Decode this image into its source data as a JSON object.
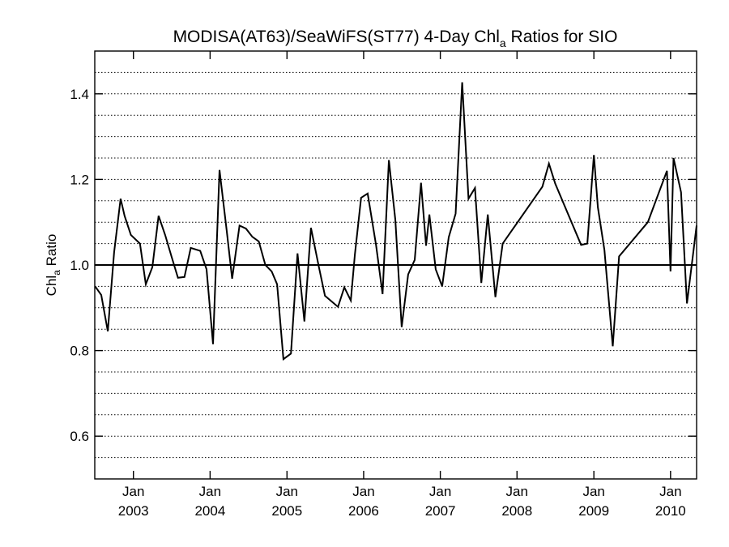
{
  "chart_data": {
    "type": "line",
    "title": {
      "prefix": "MODISA(AT63)/SeaWiFS(ST77) 4-Day Chl",
      "sub": "a",
      "suffix": " Ratios for SIO"
    },
    "ylabel": {
      "prefix": "Chl",
      "sub": "a",
      "suffix": " Ratio"
    },
    "xlim": [
      "2002-07-01",
      "2010-05-05"
    ],
    "ylim": [
      0.5,
      1.5
    ],
    "y_ticks": [
      0.6,
      0.8,
      1.0,
      1.2,
      1.4
    ],
    "y_tick_labels": [
      "0.6",
      "0.8",
      "1.0",
      "1.2",
      "1.4"
    ],
    "x_ticks": [
      {
        "date": "2003-01-01",
        "month": "Jan",
        "year": "2003"
      },
      {
        "date": "2004-01-01",
        "month": "Jan",
        "year": "2004"
      },
      {
        "date": "2005-01-01",
        "month": "Jan",
        "year": "2005"
      },
      {
        "date": "2006-01-01",
        "month": "Jan",
        "year": "2006"
      },
      {
        "date": "2007-01-01",
        "month": "Jan",
        "year": "2007"
      },
      {
        "date": "2008-01-01",
        "month": "Jan",
        "year": "2008"
      },
      {
        "date": "2009-01-01",
        "month": "Jan",
        "year": "2009"
      },
      {
        "date": "2010-01-01",
        "month": "Jan",
        "year": "2010"
      }
    ],
    "grid": {
      "horizontal": true,
      "style": "dotted",
      "y_values": [
        0.55,
        0.6,
        0.65,
        0.7,
        0.75,
        0.8,
        0.85,
        0.9,
        0.95,
        1.05,
        1.1,
        1.15,
        1.2,
        1.25,
        1.3,
        1.35,
        1.4,
        1.45
      ]
    },
    "reference_line": 1.0,
    "series": [
      {
        "color": "#000000",
        "points": [
          [
            "2002-07-03",
            0.95
          ],
          [
            "2002-08-01",
            0.93
          ],
          [
            "2002-09-01",
            0.845
          ],
          [
            "2002-10-01",
            1.03
          ],
          [
            "2002-11-01",
            1.155
          ],
          [
            "2002-11-20",
            1.115
          ],
          [
            "2002-12-20",
            1.07
          ],
          [
            "2003-02-01",
            1.05
          ],
          [
            "2003-03-01",
            0.955
          ],
          [
            "2003-04-01",
            0.995
          ],
          [
            "2003-05-01",
            1.115
          ],
          [
            "2003-06-01",
            1.07
          ],
          [
            "2003-07-01",
            1.02
          ],
          [
            "2003-08-01",
            0.97
          ],
          [
            "2003-09-01",
            0.972
          ],
          [
            "2003-10-01",
            1.04
          ],
          [
            "2003-11-15",
            1.033
          ],
          [
            "2003-12-15",
            0.99
          ],
          [
            "2004-01-15",
            0.815
          ],
          [
            "2004-02-15",
            1.222
          ],
          [
            "2004-03-20",
            1.08
          ],
          [
            "2004-04-15",
            0.968
          ],
          [
            "2004-05-20",
            1.092
          ],
          [
            "2004-06-20",
            1.085
          ],
          [
            "2004-07-20",
            1.066
          ],
          [
            "2004-08-20",
            1.055
          ],
          [
            "2004-09-20",
            1.0
          ],
          [
            "2004-10-20",
            0.985
          ],
          [
            "2004-11-15",
            0.955
          ],
          [
            "2004-12-15",
            0.78
          ],
          [
            "2005-01-20",
            0.793
          ],
          [
            "2005-02-20",
            1.027
          ],
          [
            "2005-03-25",
            0.868
          ],
          [
            "2005-04-25",
            1.087
          ],
          [
            "2005-06-01",
            0.997
          ],
          [
            "2005-07-01",
            0.928
          ],
          [
            "2005-08-01",
            0.915
          ],
          [
            "2005-09-01",
            0.902
          ],
          [
            "2005-10-01",
            0.948
          ],
          [
            "2005-11-01",
            0.917
          ],
          [
            "2005-11-20",
            1.024
          ],
          [
            "2005-12-20",
            1.157
          ],
          [
            "2006-01-20",
            1.167
          ],
          [
            "2006-03-01",
            1.046
          ],
          [
            "2006-04-01",
            0.932
          ],
          [
            "2006-05-01",
            1.245
          ],
          [
            "2006-06-01",
            1.105
          ],
          [
            "2006-07-01",
            0.855
          ],
          [
            "2006-08-01",
            0.978
          ],
          [
            "2006-09-01",
            1.012
          ],
          [
            "2006-10-01",
            1.192
          ],
          [
            "2006-10-25",
            1.045
          ],
          [
            "2006-11-10",
            1.118
          ],
          [
            "2006-12-10",
            0.99
          ],
          [
            "2007-01-10",
            0.95
          ],
          [
            "2007-02-10",
            1.065
          ],
          [
            "2007-03-15",
            1.12
          ],
          [
            "2007-04-15",
            1.427
          ],
          [
            "2007-05-15",
            1.155
          ],
          [
            "2007-06-15",
            1.18
          ],
          [
            "2007-07-15",
            0.958
          ],
          [
            "2007-08-15",
            1.118
          ],
          [
            "2007-09-20",
            0.925
          ],
          [
            "2007-10-25",
            1.05
          ],
          [
            "2008-05-01",
            1.183
          ],
          [
            "2008-06-01",
            1.237
          ],
          [
            "2008-07-01",
            1.19
          ],
          [
            "2008-11-01",
            1.047
          ],
          [
            "2008-12-01",
            1.05
          ],
          [
            "2009-01-01",
            1.257
          ],
          [
            "2009-01-20",
            1.135
          ],
          [
            "2009-02-20",
            1.035
          ],
          [
            "2009-04-01",
            0.81
          ],
          [
            "2009-05-01",
            1.02
          ],
          [
            "2009-09-15",
            1.1
          ],
          [
            "2009-12-15",
            1.22
          ],
          [
            "2010-01-01",
            0.985
          ],
          [
            "2010-01-15",
            1.25
          ],
          [
            "2010-02-20",
            1.17
          ],
          [
            "2010-03-20",
            0.91
          ],
          [
            "2010-05-05",
            1.092
          ]
        ]
      }
    ]
  }
}
